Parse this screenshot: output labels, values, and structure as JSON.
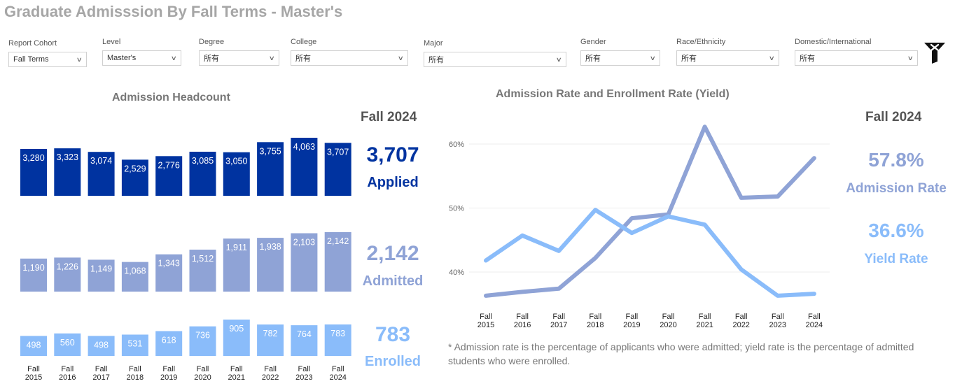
{
  "page": {
    "title": "Graduate Admisssion By Fall Terms - Master's"
  },
  "filters": [
    {
      "label": "Report Cohort",
      "value": "Fall Terms"
    },
    {
      "label": "Level",
      "value": "Master's"
    },
    {
      "label": "Degree",
      "value": "所有"
    },
    {
      "label": "College",
      "value": "所有"
    },
    {
      "label": "Major",
      "value": "所有"
    },
    {
      "label": "Gender",
      "value": "所有"
    },
    {
      "label": "Race/Ethnicity",
      "value": "所有"
    },
    {
      "label": "Domestic/International",
      "value": "所有"
    }
  ],
  "headcount": {
    "title": "Admission Headcount",
    "fall_label": "Fall 2024",
    "kpis": {
      "applied": {
        "value": "3,707",
        "label": "Applied",
        "color": "#0033a0"
      },
      "admitted": {
        "value": "2,142",
        "label": "Admitted",
        "color": "#8fa3d6"
      },
      "enrolled": {
        "value": "783",
        "label": "Enrolled",
        "color": "#8abcfa"
      }
    }
  },
  "rates": {
    "title": "Admission Rate and Enrollment Rate (Yield)",
    "fall_label": "Fall 2024",
    "kpis": {
      "admission": {
        "value": "57.8%",
        "label": "Admission Rate",
        "color": "#8fa3d6"
      },
      "yield": {
        "value": "36.6%",
        "label": "Yield Rate",
        "color": "#8abcfa"
      }
    },
    "footnote": "* Admission rate is the percentage of applicants who were admitted; yield rate is the percentage of admitted students who were enrolled."
  },
  "chart_data": [
    {
      "type": "bar",
      "title": "Admission Headcount",
      "categories": [
        "Fall 2015",
        "Fall 2016",
        "Fall 2017",
        "Fall 2018",
        "Fall 2019",
        "Fall 2020",
        "Fall 2021",
        "Fall 2022",
        "Fall 2023",
        "Fall 2024"
      ],
      "series": [
        {
          "name": "Applied",
          "color": "#0033a0",
          "values": [
            3280,
            3323,
            3074,
            2529,
            2776,
            3085,
            3050,
            3755,
            4063,
            3707
          ],
          "labels": [
            "3,280",
            "3,323",
            "3,074",
            "2,529",
            "2,776",
            "3,085",
            "3,050",
            "3,755",
            "4,063",
            "3,707"
          ]
        },
        {
          "name": "Admitted",
          "color": "#8fa3d6",
          "values": [
            1190,
            1226,
            1149,
            1068,
            1343,
            1512,
            1911,
            1938,
            2103,
            2142
          ],
          "labels": [
            "1,190",
            "1,226",
            "1,149",
            "1,068",
            "1,343",
            "1,512",
            "1,911",
            "1,938",
            "2,103",
            "2,142"
          ]
        },
        {
          "name": "Enrolled",
          "color": "#8abcfa",
          "values": [
            498,
            560,
            498,
            531,
            618,
            736,
            905,
            782,
            764,
            783
          ],
          "labels": [
            "498",
            "560",
            "498",
            "531",
            "618",
            "736",
            "905",
            "782",
            "764",
            "783"
          ]
        }
      ],
      "grid": false
    },
    {
      "type": "line",
      "title": "Admission Rate and Enrollment Rate (Yield)",
      "categories": [
        "Fall 2015",
        "Fall 2016",
        "Fall 2017",
        "Fall 2018",
        "Fall 2019",
        "Fall 2020",
        "Fall 2021",
        "Fall 2022",
        "Fall 2023",
        "Fall 2024"
      ],
      "series": [
        {
          "name": "Admission Rate",
          "color": "#8fa3d6",
          "values": [
            36.3,
            36.9,
            37.4,
            42.2,
            48.4,
            49.0,
            62.7,
            51.6,
            51.8,
            57.8
          ]
        },
        {
          "name": "Yield Rate",
          "color": "#8abcfa",
          "values": [
            41.8,
            45.7,
            43.3,
            49.7,
            46.1,
            48.7,
            47.4,
            40.4,
            36.3,
            36.6
          ]
        }
      ],
      "yticks": [
        "40%",
        "50%",
        "60%"
      ],
      "ylim": [
        34,
        64
      ],
      "grid": true,
      "legend": "none"
    }
  ]
}
